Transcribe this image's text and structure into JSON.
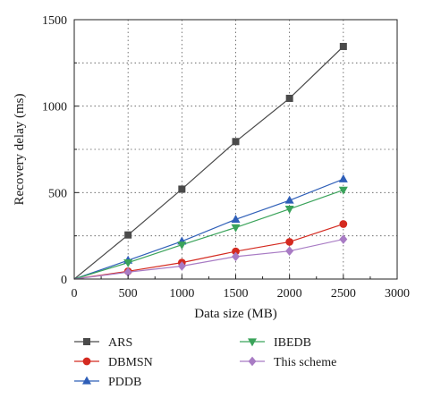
{
  "chart_data": {
    "type": "line",
    "title": "",
    "xlabel": "Data size (MB)",
    "ylabel": "Recovery delay (ms)",
    "xlim": [
      0,
      3000
    ],
    "ylim": [
      0,
      1500
    ],
    "xticks": [
      0,
      500,
      1000,
      1500,
      2000,
      2500,
      3000
    ],
    "yticks": [
      0,
      500,
      1000,
      1500
    ],
    "grid": true,
    "legend_position": "bottom",
    "x": [
      0,
      500,
      1000,
      1500,
      2000,
      2500
    ],
    "series": [
      {
        "name": "ARS",
        "marker": "square",
        "color": "#4a4a4a",
        "values": [
          0,
          255,
          520,
          795,
          1045,
          1345
        ]
      },
      {
        "name": "DBMSN",
        "marker": "circle",
        "color": "#d42a20",
        "values": [
          0,
          45,
          95,
          160,
          215,
          318
        ]
      },
      {
        "name": "PDDB",
        "marker": "triangle-up",
        "color": "#2f5fb8",
        "values": [
          0,
          108,
          218,
          345,
          455,
          578
        ]
      },
      {
        "name": "IBEDB",
        "marker": "triangle-down",
        "color": "#3aa35a",
        "values": [
          0,
          95,
          198,
          298,
          405,
          515
        ]
      },
      {
        "name": "This scheme",
        "marker": "diamond",
        "color": "#a87bc4",
        "values": [
          0,
          40,
          75,
          130,
          162,
          230
        ]
      }
    ]
  }
}
